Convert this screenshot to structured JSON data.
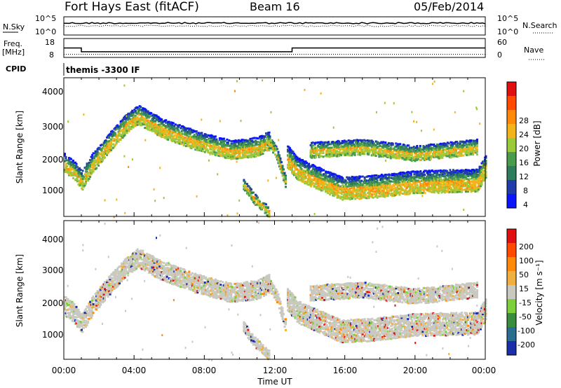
{
  "header": {
    "site": "Fort Hays East (fitACF)",
    "beam": "Beam 16",
    "date": "05/Feb/2014"
  },
  "panels": {
    "nsky_label": "N.Sky",
    "nsky_ticks": [
      "10^5",
      "10^0"
    ],
    "nsearch_label": "N.Search",
    "nsearch_ticks": [
      "10^5",
      "10^0"
    ],
    "freq_label": "Freq.",
    "freq_unit": "[MHz]",
    "freq_ticks": [
      "18",
      "8"
    ],
    "nave_label": "Nave",
    "nave_ticks": [
      "60",
      "0"
    ],
    "cpid_label": "CPID",
    "cpid_value": "themis -3300 IF"
  },
  "power_panel": {
    "ylabel": "Slant Range [km]",
    "yticks": [
      "4000",
      "3000",
      "2000",
      "1000"
    ],
    "colorbar_label": "Power [dB]",
    "colorbar_ticks": [
      "28",
      "24",
      "20",
      "16",
      "12",
      "8",
      "4"
    ],
    "colors": [
      "#0b14ff",
      "#1f3ca8",
      "#2e7b5e",
      "#4a9b4e",
      "#9ac93a",
      "#f2b41b",
      "#ff8a0a",
      "#ff4a00",
      "#e01010"
    ]
  },
  "velocity_panel": {
    "ylabel": "Slant Range [km]",
    "yticks": [
      "4000",
      "3000",
      "2000",
      "1000"
    ],
    "colorbar_label": "Velocity [m s⁻¹]",
    "colorbar_ticks": [
      "200",
      "100",
      "50",
      "15",
      "-15",
      "-50",
      "-100",
      "-200"
    ],
    "colors": [
      "#1a2ea8",
      "#2a6e8f",
      "#3a8d3e",
      "#7dcf3b",
      "#c9c9c0",
      "#f0b040",
      "#ff8a0a",
      "#ff4a00",
      "#e01010"
    ]
  },
  "xaxis": {
    "label": "Time UT",
    "ticks": [
      "00:00",
      "04:00",
      "08:00",
      "12:00",
      "16:00",
      "20:00",
      "00:00"
    ]
  },
  "chart_data": {
    "type": "heatmap",
    "title": "Fort Hays East (fitACF)",
    "subtitle": "Beam 16",
    "date": "05/Feb/2014",
    "xlabel": "Time UT",
    "ylabel": "Slant Range [km]",
    "x_range_hours": [
      0,
      24
    ],
    "y_range_km": [
      180,
      4500
    ],
    "frequency_mhz_segments": [
      {
        "start_hour": 0.0,
        "end_hour": 1.0,
        "value": 13
      },
      {
        "start_hour": 1.0,
        "end_hour": 13.0,
        "value": 11
      },
      {
        "start_hour": 13.0,
        "end_hour": 24.0,
        "value": 13
      }
    ],
    "nave_approx": 10,
    "echo_bands": [
      {
        "name": "",
        "points": [
          [
            0.0,
            1900
          ],
          [
            0.5,
            1700
          ],
          [
            1.0,
            1350
          ],
          [
            1.6,
            1900
          ],
          [
            2.5,
            2500
          ],
          [
            3.5,
            3100
          ],
          [
            4.2,
            3400
          ],
          [
            5.5,
            3000
          ],
          [
            7.5,
            2600
          ],
          [
            9.5,
            2300
          ],
          [
            11.0,
            2400
          ],
          [
            11.7,
            2600
          ]
        ],
        "width_km": 600
      },
      {
        "name": "",
        "points": [
          [
            11.5,
            2700
          ],
          [
            12.1,
            2200
          ],
          [
            12.6,
            1300
          ]
        ],
        "width_km": 400
      },
      {
        "name": "",
        "points": [
          [
            10.2,
            1250
          ],
          [
            10.8,
            800
          ],
          [
            11.7,
            350
          ]
        ],
        "width_km": 350
      },
      {
        "name": "",
        "points": [
          [
            12.7,
            2100
          ],
          [
            13.3,
            1700
          ],
          [
            14.5,
            1400
          ],
          [
            15.8,
            1100
          ],
          [
            17.5,
            1150
          ],
          [
            20.0,
            1300
          ],
          [
            23.5,
            1350
          ],
          [
            24.0,
            1800
          ]
        ],
        "width_km": 700
      },
      {
        "name": "",
        "points": [
          [
            14.0,
            2300
          ],
          [
            17.0,
            2400
          ],
          [
            20.0,
            2200
          ],
          [
            23.5,
            2400
          ]
        ],
        "width_km": 500
      }
    ]
  }
}
